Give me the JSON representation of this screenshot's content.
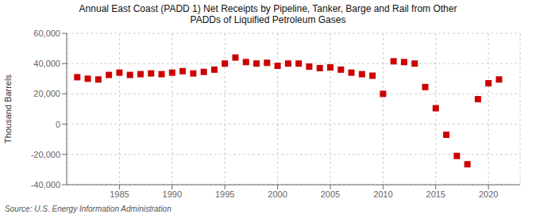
{
  "chart_data": {
    "type": "scatter",
    "title": "Annual East Coast (PADD 1) Net Receipts by Pipeline, Tanker, Barge and Rail from Other\nPADDs of Liquified Petroleum Gases",
    "ylabel": "Thousand Barrels",
    "source": "Source: U.S. Energy Information Administration",
    "color": "#cc0000",
    "marker": "square",
    "grid": true,
    "x": [
      1981,
      1982,
      1983,
      1984,
      1985,
      1986,
      1987,
      1988,
      1989,
      1990,
      1991,
      1992,
      1993,
      1994,
      1995,
      1996,
      1997,
      1998,
      1999,
      2000,
      2001,
      2002,
      2003,
      2004,
      2005,
      2006,
      2007,
      2008,
      2009,
      2010,
      2011,
      2012,
      2013,
      2014,
      2015,
      2016,
      2017,
      2018,
      2019,
      2020,
      2021
    ],
    "values": [
      31000,
      30000,
      29500,
      32500,
      34000,
      32500,
      33000,
      33500,
      33000,
      34000,
      35000,
      33500,
      34500,
      36000,
      40000,
      44000,
      41000,
      40000,
      40500,
      38500,
      40000,
      40000,
      38000,
      37000,
      37500,
      36000,
      34000,
      33000,
      32000,
      20000,
      41500,
      41000,
      40000,
      24500,
      10500,
      -7000,
      -21000,
      -26500,
      16500,
      27000,
      29500
    ],
    "xlim": [
      1980,
      2023
    ],
    "xticks": [
      1985,
      1990,
      1995,
      2000,
      2005,
      2010,
      2015,
      2020
    ],
    "ylim": [
      -40000,
      60000
    ],
    "yticks": [
      {
        "value": -40000,
        "label": "-40,000"
      },
      {
        "value": -20000,
        "label": "-20,000"
      },
      0,
      {
        "value": 20000,
        "label": "20,000"
      },
      {
        "value": 40000,
        "label": "40,000"
      },
      {
        "value": 60000,
        "label": "60,000"
      }
    ]
  }
}
